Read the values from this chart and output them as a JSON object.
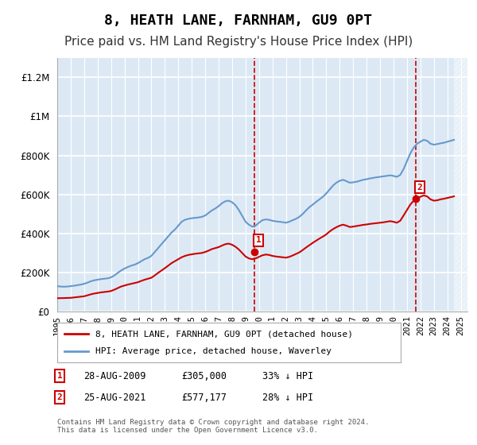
{
  "title": "8, HEATH LANE, FARNHAM, GU9 0PT",
  "subtitle": "Price paid vs. HM Land Registry's House Price Index (HPI)",
  "title_fontsize": 13,
  "subtitle_fontsize": 11,
  "xlabel": "",
  "ylabel": "",
  "ylim": [
    0,
    1300000
  ],
  "yticks": [
    0,
    200000,
    400000,
    600000,
    800000,
    1000000,
    1200000
  ],
  "ytick_labels": [
    "£0",
    "£200K",
    "£400K",
    "£600K",
    "£800K",
    "£1M",
    "£1.2M"
  ],
  "bg_color": "#dce9f5",
  "plot_bg_color": "#dce9f5",
  "grid_color": "#ffffff",
  "red_color": "#cc0000",
  "blue_color": "#6699cc",
  "sale1_date": 2009.65,
  "sale1_price": 305000,
  "sale2_date": 2021.65,
  "sale2_price": 577177,
  "footnote": "Contains HM Land Registry data © Crown copyright and database right 2024.\nThis data is licensed under the Open Government Licence v3.0.",
  "legend_label_red": "8, HEATH LANE, FARNHAM, GU9 0PT (detached house)",
  "legend_label_blue": "HPI: Average price, detached house, Waverley",
  "table_row1": [
    "1",
    "28-AUG-2009",
    "£305,000",
    "33% ↓ HPI"
  ],
  "table_row2": [
    "2",
    "25-AUG-2021",
    "£577,177",
    "28% ↓ HPI"
  ],
  "hpi_data": {
    "years": [
      1995.0,
      1995.25,
      1995.5,
      1995.75,
      1996.0,
      1996.25,
      1996.5,
      1996.75,
      1997.0,
      1997.25,
      1997.5,
      1997.75,
      1998.0,
      1998.25,
      1998.5,
      1998.75,
      1999.0,
      1999.25,
      1999.5,
      1999.75,
      2000.0,
      2000.25,
      2000.5,
      2000.75,
      2001.0,
      2001.25,
      2001.5,
      2001.75,
      2002.0,
      2002.25,
      2002.5,
      2002.75,
      2003.0,
      2003.25,
      2003.5,
      2003.75,
      2004.0,
      2004.25,
      2004.5,
      2004.75,
      2005.0,
      2005.25,
      2005.5,
      2005.75,
      2006.0,
      2006.25,
      2006.5,
      2006.75,
      2007.0,
      2007.25,
      2007.5,
      2007.75,
      2008.0,
      2008.25,
      2008.5,
      2008.75,
      2009.0,
      2009.25,
      2009.5,
      2009.75,
      2010.0,
      2010.25,
      2010.5,
      2010.75,
      2011.0,
      2011.25,
      2011.5,
      2011.75,
      2012.0,
      2012.25,
      2012.5,
      2012.75,
      2013.0,
      2013.25,
      2013.5,
      2013.75,
      2014.0,
      2014.25,
      2014.5,
      2014.75,
      2015.0,
      2015.25,
      2015.5,
      2015.75,
      2016.0,
      2016.25,
      2016.5,
      2016.75,
      2017.0,
      2017.25,
      2017.5,
      2017.75,
      2018.0,
      2018.25,
      2018.5,
      2018.75,
      2019.0,
      2019.25,
      2019.5,
      2019.75,
      2020.0,
      2020.25,
      2020.5,
      2020.75,
      2021.0,
      2021.25,
      2021.5,
      2021.75,
      2022.0,
      2022.25,
      2022.5,
      2022.75,
      2023.0,
      2023.25,
      2023.5,
      2023.75,
      2024.0,
      2024.25,
      2024.5
    ],
    "values": [
      130000,
      128000,
      127000,
      128000,
      130000,
      132000,
      135000,
      138000,
      142000,
      148000,
      155000,
      160000,
      163000,
      166000,
      168000,
      170000,
      175000,
      185000,
      198000,
      210000,
      220000,
      228000,
      235000,
      240000,
      248000,
      258000,
      268000,
      275000,
      285000,
      305000,
      325000,
      345000,
      365000,
      385000,
      405000,
      420000,
      440000,
      460000,
      470000,
      475000,
      478000,
      480000,
      482000,
      485000,
      492000,
      505000,
      518000,
      528000,
      540000,
      555000,
      565000,
      568000,
      560000,
      545000,
      520000,
      490000,
      460000,
      445000,
      435000,
      440000,
      455000,
      468000,
      472000,
      470000,
      465000,
      462000,
      460000,
      458000,
      455000,
      460000,
      468000,
      475000,
      485000,
      500000,
      518000,
      535000,
      548000,
      562000,
      575000,
      588000,
      605000,
      625000,
      645000,
      660000,
      670000,
      675000,
      668000,
      660000,
      662000,
      665000,
      670000,
      675000,
      678000,
      682000,
      685000,
      688000,
      690000,
      693000,
      695000,
      698000,
      695000,
      690000,
      700000,
      730000,
      770000,
      810000,
      840000,
      860000,
      870000,
      880000,
      875000,
      860000,
      855000,
      858000,
      862000,
      865000,
      870000,
      875000,
      880000
    ]
  },
  "price_data": {
    "years": [
      1995.0,
      1995.25,
      1995.5,
      1995.75,
      1996.0,
      1996.25,
      1996.5,
      1996.75,
      1997.0,
      1997.25,
      1997.5,
      1997.75,
      1998.0,
      1998.25,
      1998.5,
      1998.75,
      1999.0,
      1999.25,
      1999.5,
      1999.75,
      2000.0,
      2000.25,
      2000.5,
      2000.75,
      2001.0,
      2001.25,
      2001.5,
      2001.75,
      2002.0,
      2002.25,
      2002.5,
      2002.75,
      2003.0,
      2003.25,
      2003.5,
      2003.75,
      2004.0,
      2004.25,
      2004.5,
      2004.75,
      2005.0,
      2005.25,
      2005.5,
      2005.75,
      2006.0,
      2006.25,
      2006.5,
      2006.75,
      2007.0,
      2007.25,
      2007.5,
      2007.75,
      2008.0,
      2008.25,
      2008.5,
      2008.75,
      2009.0,
      2009.25,
      2009.5,
      2009.75,
      2010.0,
      2010.25,
      2010.5,
      2010.75,
      2011.0,
      2011.25,
      2011.5,
      2011.75,
      2012.0,
      2012.25,
      2012.5,
      2012.75,
      2013.0,
      2013.25,
      2013.5,
      2013.75,
      2014.0,
      2014.25,
      2014.5,
      2014.75,
      2015.0,
      2015.25,
      2015.5,
      2015.75,
      2016.0,
      2016.25,
      2016.5,
      2016.75,
      2017.0,
      2017.25,
      2017.5,
      2017.75,
      2018.0,
      2018.25,
      2018.5,
      2018.75,
      2019.0,
      2019.25,
      2019.5,
      2019.75,
      2020.0,
      2020.25,
      2020.5,
      2020.75,
      2021.0,
      2021.25,
      2021.5,
      2021.75,
      2022.0,
      2022.25,
      2022.5,
      2022.75,
      2023.0,
      2023.25,
      2023.5,
      2023.75,
      2024.0,
      2024.25,
      2024.5
    ],
    "values": [
      68000,
      68500,
      69000,
      69500,
      70000,
      72000,
      74000,
      76000,
      78000,
      83000,
      88000,
      92000,
      95000,
      98000,
      100000,
      102000,
      105000,
      112000,
      120000,
      128000,
      133000,
      138000,
      142000,
      146000,
      150000,
      157000,
      163000,
      168000,
      173000,
      185000,
      198000,
      210000,
      222000,
      235000,
      248000,
      258000,
      268000,
      278000,
      285000,
      290000,
      293000,
      296000,
      298000,
      300000,
      305000,
      312000,
      320000,
      325000,
      330000,
      338000,
      345000,
      348000,
      342000,
      332000,
      318000,
      300000,
      282000,
      272000,
      268000,
      272000,
      280000,
      288000,
      292000,
      290000,
      285000,
      282000,
      280000,
      278000,
      276000,
      280000,
      287000,
      295000,
      303000,
      315000,
      328000,
      340000,
      352000,
      363000,
      374000,
      384000,
      395000,
      410000,
      422000,
      432000,
      440000,
      445000,
      440000,
      433000,
      435000,
      438000,
      441000,
      444000,
      446000,
      449000,
      451000,
      453000,
      455000,
      457000,
      460000,
      463000,
      460000,
      455000,
      465000,
      492000,
      520000,
      548000,
      568000,
      580000,
      588000,
      595000,
      590000,
      575000,
      568000,
      570000,
      575000,
      578000,
      582000,
      586000,
      590000
    ]
  }
}
